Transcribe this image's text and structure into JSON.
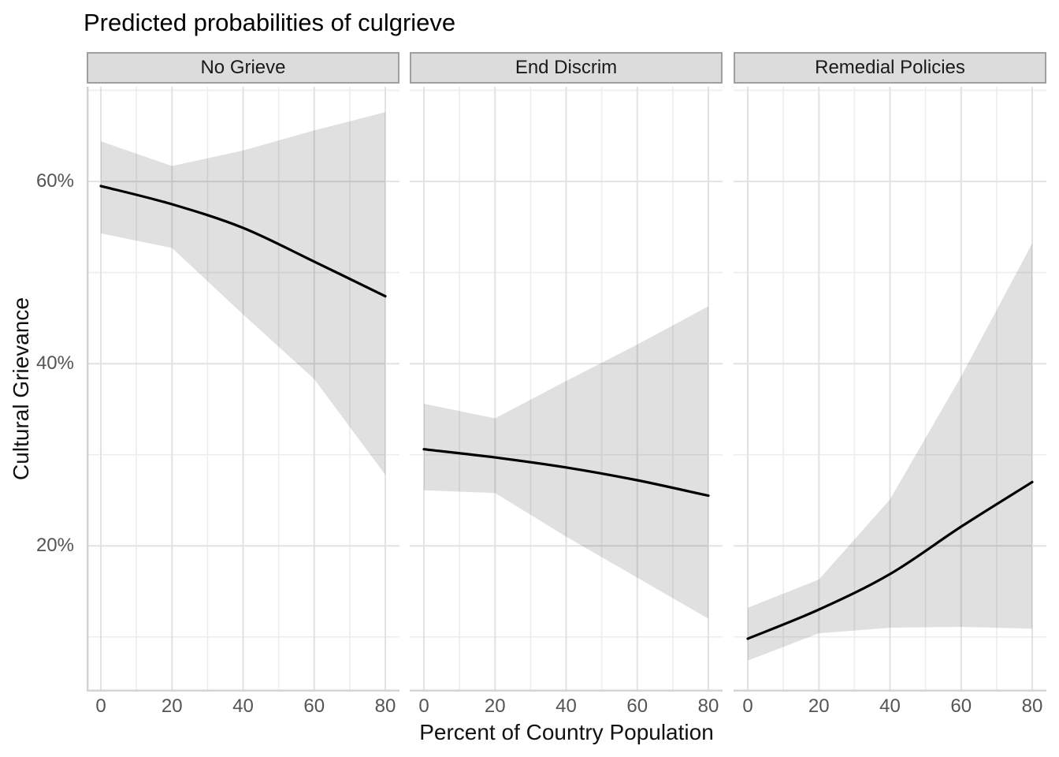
{
  "title": "Predicted probabilities of culgrieve",
  "chart_data": {
    "type": "line",
    "title": "Predicted probabilities of culgrieve",
    "xlabel": "Percent of Country Population",
    "ylabel": "Cultural Grievance",
    "legend": "none",
    "grid": true,
    "x": [
      0,
      20,
      40,
      60,
      80
    ],
    "x_tick_labels": [
      "0",
      "20",
      "40",
      "60",
      "80"
    ],
    "x_minor": [
      10,
      30,
      50,
      70
    ],
    "y_ticks": [
      20,
      40,
      60
    ],
    "y_tick_labels": [
      "20%",
      "40%",
      "60%"
    ],
    "y_minor": [
      10,
      30,
      50,
      70
    ],
    "xlim": [
      -4.5,
      84.5
    ],
    "ylim": [
      4.0,
      70.4
    ],
    "y_unit": "percent",
    "facets": [
      {
        "label": "No Grieve",
        "fit": [
          59.5,
          57.5,
          54.9,
          51.2,
          47.4
        ],
        "upper": [
          64.4,
          61.7,
          63.4,
          65.6,
          67.6
        ],
        "lower": [
          54.3,
          52.7,
          45.4,
          38.3,
          27.8
        ]
      },
      {
        "label": "End Discrim",
        "fit": [
          30.6,
          29.7,
          28.6,
          27.2,
          25.5
        ],
        "upper": [
          35.6,
          34.0,
          38.1,
          42.1,
          46.3
        ],
        "lower": [
          26.1,
          25.8,
          21.0,
          16.5,
          12.0
        ]
      },
      {
        "label": "Remedial Policies",
        "fit": [
          9.8,
          13.0,
          16.9,
          22.1,
          27.0
        ],
        "upper": [
          13.2,
          16.3,
          25.1,
          38.6,
          53.2
        ],
        "lower": [
          7.4,
          10.4,
          11.0,
          11.1,
          10.9
        ]
      }
    ]
  },
  "colors": {
    "fit_line": "#000000",
    "ribbon_fill": "rgba(0,0,0,0.12)",
    "grid_major": "#e2e2e2",
    "grid_minor": "#ededed",
    "axis_line": "#d4d4d4",
    "strip_bg": "#dcdcdc",
    "strip_border": "#9f9f9f",
    "strip_text": "#1a1a1a",
    "tick_text": "#545454",
    "axis_title_text": "#111111",
    "title_text": "#000000",
    "panel_bg": "#ffffff"
  }
}
